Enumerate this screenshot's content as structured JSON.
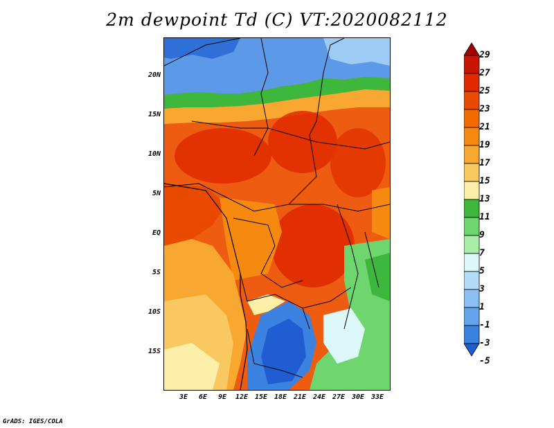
{
  "title": "2m dewpoint Td (C) VT:2020082112",
  "credit": "GrADS: IGES/COLA",
  "axes": {
    "lat_labels": [
      "20N",
      "15N",
      "10N",
      "5N",
      "EQ",
      "5S",
      "10S",
      "15S"
    ],
    "lon_labels": [
      "3E",
      "6E",
      "9E",
      "12E",
      "15E",
      "18E",
      "21E",
      "24E",
      "27E",
      "30E",
      "33E"
    ]
  },
  "colorbar": {
    "labels": [
      "29",
      "27",
      "25",
      "23",
      "21",
      "19",
      "17",
      "15",
      "13",
      "11",
      "9",
      "7",
      "5",
      "3",
      "1",
      "-1",
      "-3",
      "-5"
    ],
    "colors": [
      "#a00000",
      "#c81400",
      "#e02a00",
      "#ea4a00",
      "#f26a00",
      "#f68a10",
      "#f8a830",
      "#fac860",
      "#fdefa8",
      "#3db83d",
      "#6fd66f",
      "#a8eea8",
      "#dcf8f8",
      "#b4dcf8",
      "#8cc0f4",
      "#64a4ee",
      "#3c82e0",
      "#1e5ed2"
    ]
  }
}
